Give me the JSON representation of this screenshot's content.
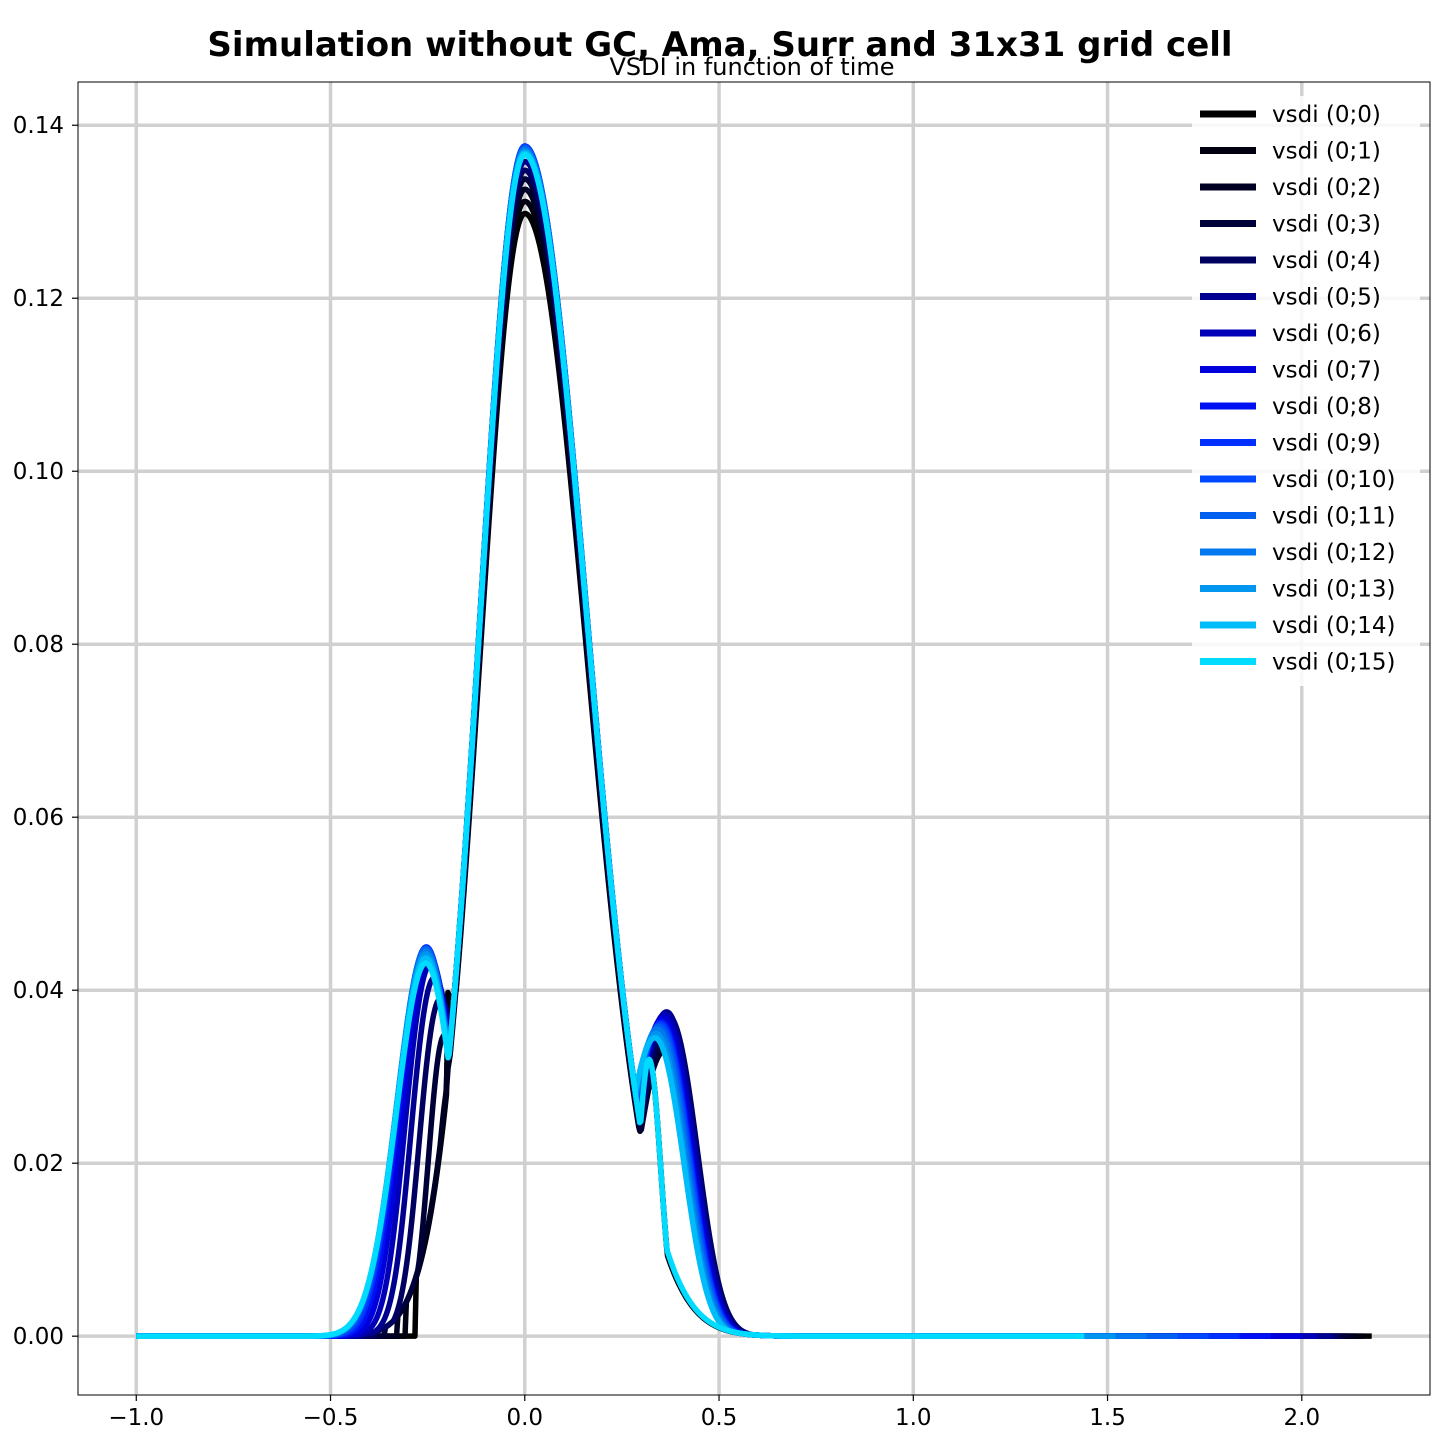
{
  "chart_data": {
    "type": "line",
    "title": "Simulation without GC, Ama, Surr and 31x31 grid cell",
    "subtitle": "VSDI in function of time",
    "xlabel": "",
    "ylabel": "",
    "xlim": [
      -1.15,
      2.33
    ],
    "ylim": [
      -0.0068,
      0.145
    ],
    "xticks": [
      -1.0,
      -0.5,
      0.0,
      0.5,
      1.0,
      1.5,
      2.0
    ],
    "xtick_labels": [
      "−1.0",
      "−0.5",
      "0.0",
      "0.5",
      "1.0",
      "1.5",
      "2.0"
    ],
    "yticks": [
      0.0,
      0.02,
      0.04,
      0.06,
      0.08,
      0.1,
      0.12,
      0.14
    ],
    "ytick_labels": [
      "0.00",
      "0.02",
      "0.04",
      "0.06",
      "0.08",
      "0.10",
      "0.12",
      "0.14"
    ],
    "grid": true,
    "legend_position": "top-right",
    "series": [
      {
        "name": "vsdi (0;0)",
        "color": "#000000",
        "x_start": -1.0,
        "x_end": 2.18,
        "peak": 0.1298,
        "left_onset": -0.2,
        "left_hump": 0.05,
        "left_hump_x": -0.193,
        "left_valley": 0.04,
        "right_hump": 0.0,
        "right_hump_x": 0.34
      },
      {
        "name": "vsdi (0;1)",
        "color": "#000010",
        "x_start": -1.0,
        "x_end": 2.16,
        "peak": 0.1312,
        "left_onset": -0.225,
        "left_hump": 0.04,
        "left_hump_x": -0.205,
        "left_valley": 0.032,
        "right_hump": 0.0,
        "right_hump_x": 0.34
      },
      {
        "name": "vsdi (0;2)",
        "color": "#000022",
        "x_start": -1.0,
        "x_end": 2.14,
        "peak": 0.1326,
        "left_onset": -0.25,
        "left_hump": 0.042,
        "left_hump_x": -0.215,
        "left_valley": 0.031,
        "right_hump": 0.033,
        "right_hump_x": 0.36
      },
      {
        "name": "vsdi (0;3)",
        "color": "#000038",
        "x_start": -1.0,
        "x_end": 2.12,
        "peak": 0.1338,
        "left_onset": -0.28,
        "left_hump": 0.043,
        "left_hump_x": -0.225,
        "left_valley": 0.03,
        "right_hump": 0.035,
        "right_hump_x": 0.37
      },
      {
        "name": "vsdi (0;4)",
        "color": "#000060",
        "x_start": -1.0,
        "x_end": 2.1,
        "peak": 0.1348,
        "left_onset": -0.31,
        "left_hump": 0.044,
        "left_hump_x": -0.235,
        "left_valley": 0.029,
        "right_hump": 0.037,
        "right_hump_x": 0.37
      },
      {
        "name": "vsdi (0;5)",
        "color": "#000090",
        "x_start": -1.0,
        "x_end": 2.08,
        "peak": 0.1358,
        "left_onset": -0.34,
        "left_hump": 0.045,
        "left_hump_x": -0.245,
        "left_valley": 0.028,
        "right_hump": 0.0375,
        "right_hump_x": 0.365
      },
      {
        "name": "vsdi (0;6)",
        "color": "#0000b8",
        "x_start": -1.0,
        "x_end": 2.04,
        "peak": 0.1368,
        "left_onset": -0.37,
        "left_hump": 0.0452,
        "left_hump_x": -0.25,
        "left_valley": 0.028,
        "right_hump": 0.0372,
        "right_hump_x": 0.36
      },
      {
        "name": "vsdi (0;7)",
        "color": "#0000dc",
        "x_start": -1.0,
        "x_end": 2.0,
        "peak": 0.1374,
        "left_onset": -0.4,
        "left_hump": 0.0454,
        "left_hump_x": -0.252,
        "left_valley": 0.028,
        "right_hump": 0.0368,
        "right_hump_x": 0.355
      },
      {
        "name": "vsdi (0;8)",
        "color": "#0010f4",
        "x_start": -1.0,
        "x_end": 1.92,
        "peak": 0.1376,
        "left_onset": -0.43,
        "left_hump": 0.0455,
        "left_hump_x": -0.255,
        "left_valley": 0.029,
        "right_hump": 0.0364,
        "right_hump_x": 0.352
      },
      {
        "name": "vsdi (0;9)",
        "color": "#0030ff",
        "x_start": -1.0,
        "x_end": 1.84,
        "peak": 0.1376,
        "left_onset": -0.46,
        "left_hump": 0.0455,
        "left_hump_x": -0.255,
        "left_valley": 0.029,
        "right_hump": 0.0362,
        "right_hump_x": 0.35
      },
      {
        "name": "vsdi (0;10)",
        "color": "#0048ff",
        "x_start": -1.0,
        "x_end": 1.76,
        "peak": 0.1375,
        "left_onset": -0.49,
        "left_hump": 0.0452,
        "left_hump_x": -0.255,
        "left_valley": 0.03,
        "right_hump": 0.036,
        "right_hump_x": 0.348
      },
      {
        "name": "vsdi (0;11)",
        "color": "#0060f0",
        "x_start": -1.0,
        "x_end": 1.68,
        "peak": 0.1374,
        "left_onset": -0.52,
        "left_hump": 0.045,
        "left_hump_x": -0.255,
        "left_valley": 0.03,
        "right_hump": 0.0358,
        "right_hump_x": 0.345
      },
      {
        "name": "vsdi (0;12)",
        "color": "#0078f0",
        "x_start": -1.0,
        "x_end": 1.6,
        "peak": 0.1372,
        "left_onset": -0.55,
        "left_hump": 0.0447,
        "left_hump_x": -0.255,
        "left_valley": 0.031,
        "right_hump": 0.0355,
        "right_hump_x": 0.342
      },
      {
        "name": "vsdi (0;13)",
        "color": "#0096f0",
        "x_start": -1.0,
        "x_end": 1.52,
        "peak": 0.137,
        "left_onset": -0.58,
        "left_hump": 0.0443,
        "left_hump_x": -0.255,
        "left_valley": 0.031,
        "right_hump": 0.035,
        "right_hump_x": 0.338
      },
      {
        "name": "vsdi (0;14)",
        "color": "#00bcf8",
        "x_start": -1.0,
        "x_end": 1.44,
        "peak": 0.1368,
        "left_onset": -0.6,
        "left_hump": 0.0438,
        "left_hump_x": -0.255,
        "left_valley": 0.032,
        "right_hump": 0.0345,
        "right_hump_x": 0.335
      },
      {
        "name": "vsdi (0;15)",
        "color": "#00dcff",
        "x_start": -1.0,
        "x_end": 1.44,
        "peak": 0.1366,
        "left_onset": -0.62,
        "left_hump": 0.0432,
        "left_hump_x": -0.255,
        "left_valley": 0.032,
        "right_hump": 0.0,
        "right_hump_x": 0.33
      }
    ]
  }
}
